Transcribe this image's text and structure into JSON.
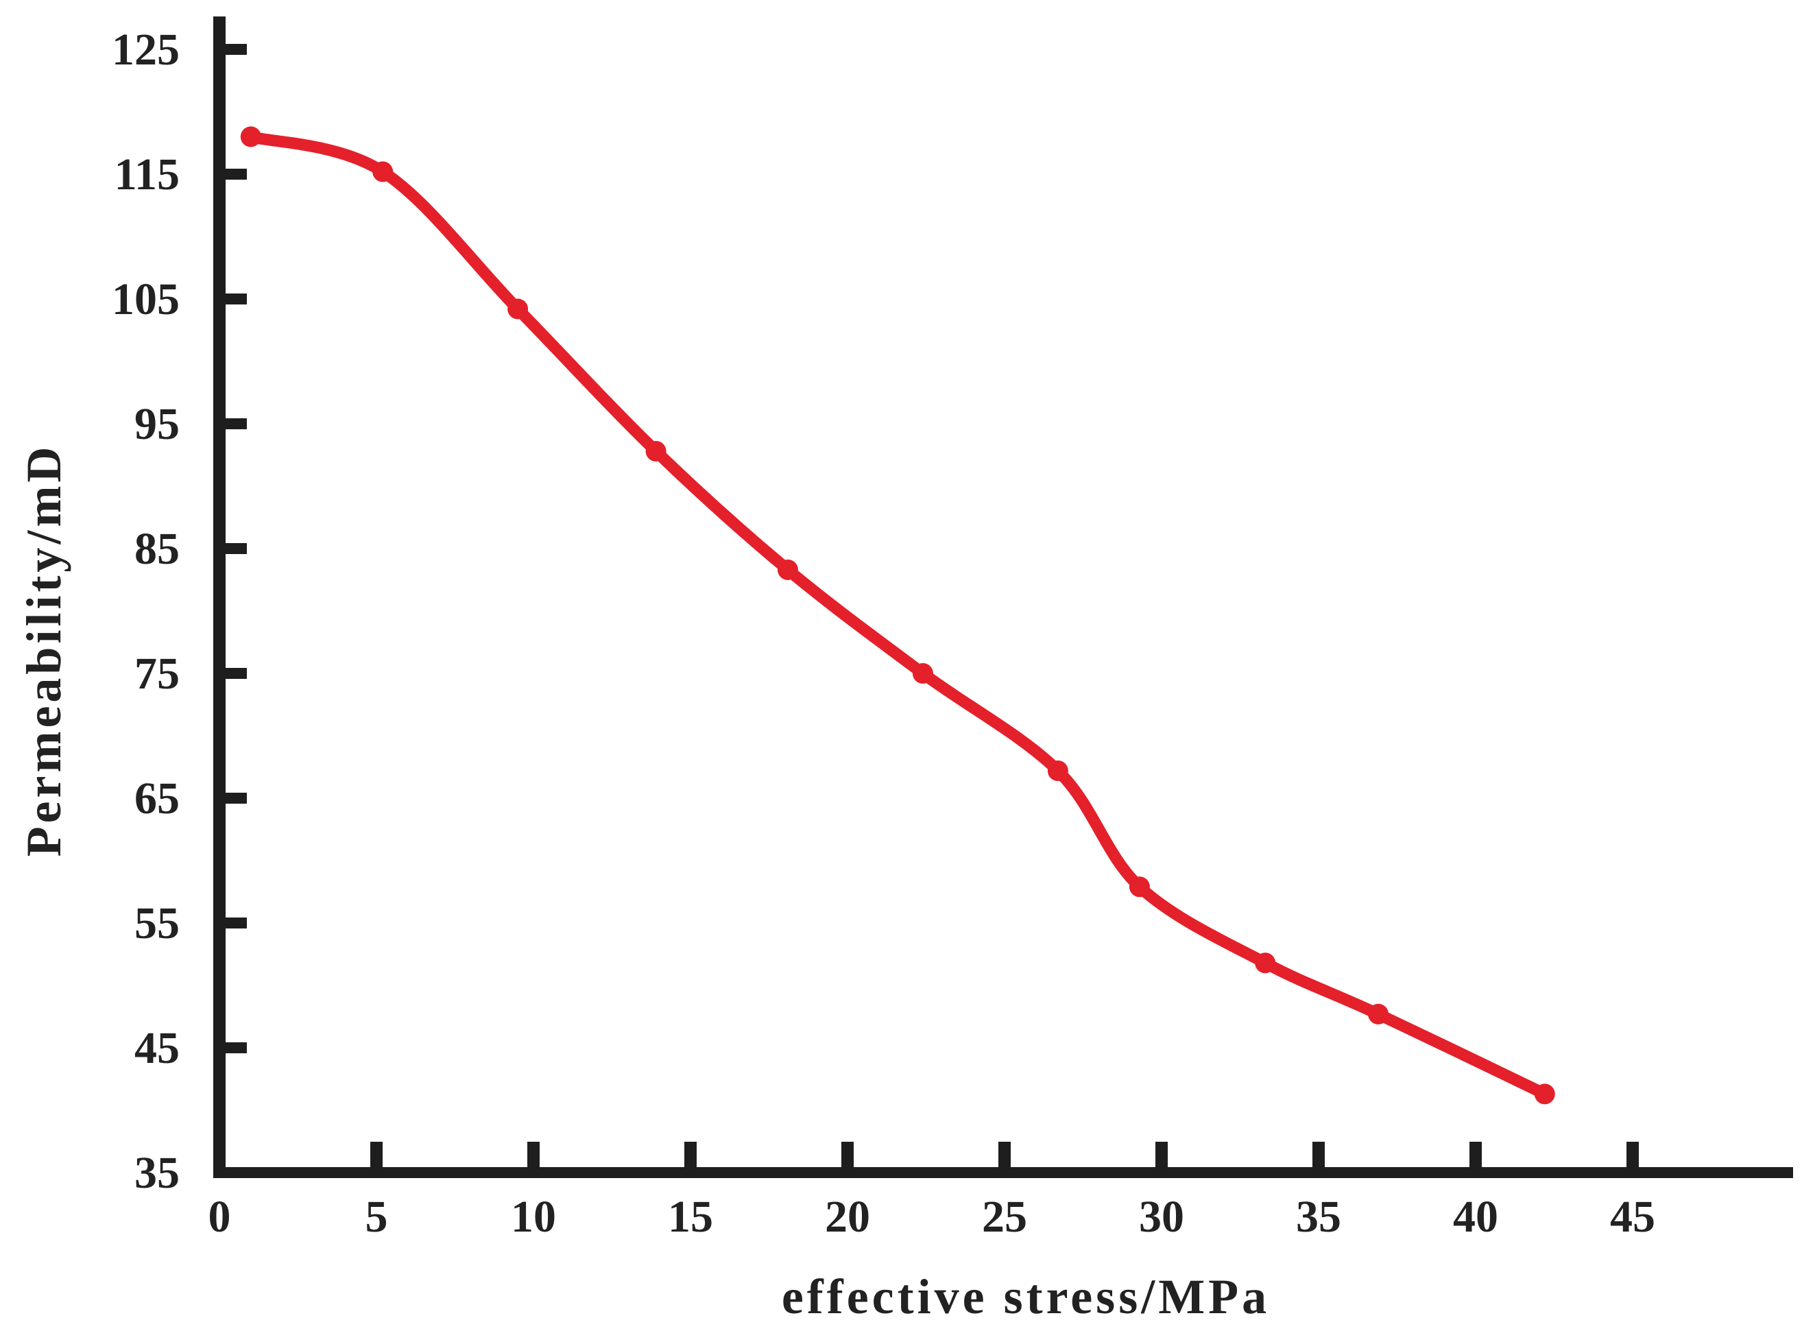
{
  "chart_data": {
    "type": "line",
    "title": "",
    "xlabel": "effective stress/MPa",
    "ylabel": "Permeability/mD",
    "xlim": [
      0,
      50
    ],
    "ylim": [
      35,
      127
    ],
    "x_ticks": [
      0,
      5,
      10,
      15,
      20,
      25,
      30,
      35,
      40,
      45
    ],
    "y_ticks": [
      35,
      45,
      55,
      65,
      75,
      85,
      95,
      105,
      115,
      125
    ],
    "x_tick_labels": [
      "0",
      "5",
      "10",
      "15",
      "20",
      "25",
      "30",
      "35",
      "40",
      "45"
    ],
    "y_tick_labels": [
      "35",
      "45",
      "55",
      "65",
      "75",
      "85",
      "95",
      "105",
      "115",
      "125"
    ],
    "grid": false,
    "series": [
      {
        "color": "#e4202b",
        "x": [
          1.0,
          5.2,
          9.5,
          13.9,
          18.1,
          22.4,
          26.7,
          29.3,
          33.3,
          36.9,
          42.2
        ],
        "y": [
          118.0,
          115.2,
          104.2,
          92.8,
          83.3,
          75.0,
          67.2,
          57.9,
          51.8,
          47.7,
          41.3
        ]
      }
    ]
  }
}
